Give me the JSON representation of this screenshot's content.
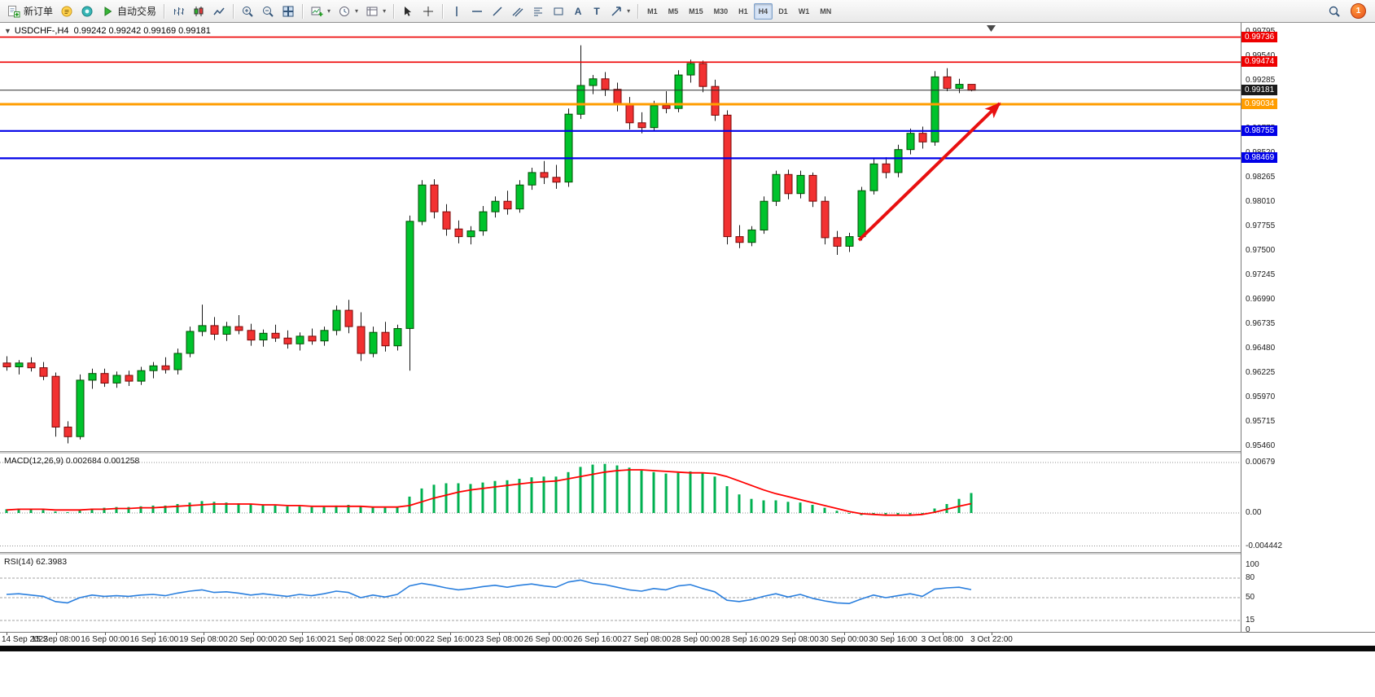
{
  "toolbar": {
    "new_order_label": "新订单",
    "autotrading_label": "自动交易",
    "timeframes": [
      "M1",
      "M5",
      "M15",
      "M30",
      "H1",
      "H4",
      "D1",
      "W1",
      "MN"
    ],
    "active_timeframe": "H4",
    "notification_count": "1"
  },
  "chart": {
    "symbol": "USDCHF-,H4",
    "ohlc_text": "0.99242 0.99242 0.99169 0.99181",
    "colors": {
      "up": "#00c32c",
      "up_border": "#044d04",
      "down": "#f23131",
      "down_border": "#7a0707"
    },
    "axis": {
      "price_max": 0.998,
      "price_min": 0.9546,
      "labels": [
        "0.99795",
        "0.99540",
        "0.99285",
        "0.99030",
        "0.98775",
        "0.98520",
        "0.98265",
        "0.98010",
        "0.97755",
        "0.97500",
        "0.97245",
        "0.96990",
        "0.96735",
        "0.96480",
        "0.96225",
        "0.95970",
        "0.95715",
        "0.95460"
      ]
    },
    "price_lines": [
      {
        "name": "resistance-upper",
        "price": 0.99736,
        "label": "0.99736",
        "color": "#ee0000",
        "width": 1.6
      },
      {
        "name": "resistance-lower",
        "price": 0.99474,
        "label": "0.99474",
        "color": "#ee0000",
        "width": 1.6
      },
      {
        "name": "bid-price",
        "price": 0.99181,
        "label": "0.99181",
        "color": "#2b2b2b",
        "width": 1,
        "badge": "#1a1a1a"
      },
      {
        "name": "alert-orange",
        "price": 0.99034,
        "label": "0.99034",
        "color": "#ff9d00",
        "width": 3
      },
      {
        "name": "support-upper",
        "price": 0.98755,
        "label": "0.98755",
        "color": "#0000e8",
        "width": 2.2
      },
      {
        "name": "support-lower",
        "price": 0.98469,
        "label": "0.98469",
        "color": "#0000e8",
        "width": 2.2
      }
    ],
    "arrow": {
      "from_index": 69.8,
      "from_price": 0.97613,
      "to_index": 81.33,
      "to_price": 0.99043,
      "color": "#e81010",
      "width": 4
    },
    "candles": [
      [
        0.9633,
        0.964,
        0.9625,
        0.9629
      ],
      [
        0.9629,
        0.9636,
        0.9621,
        0.9633
      ],
      [
        0.9633,
        0.9639,
        0.9624,
        0.9628
      ],
      [
        0.9628,
        0.9634,
        0.9615,
        0.9619
      ],
      [
        0.9619,
        0.9623,
        0.9556,
        0.9566
      ],
      [
        0.9566,
        0.9572,
        0.9549,
        0.9556
      ],
      [
        0.9556,
        0.9621,
        0.9553,
        0.9615
      ],
      [
        0.9615,
        0.9627,
        0.9606,
        0.9622
      ],
      [
        0.9622,
        0.9627,
        0.9608,
        0.9612
      ],
      [
        0.9612,
        0.9624,
        0.9607,
        0.962
      ],
      [
        0.962,
        0.9625,
        0.9609,
        0.9614
      ],
      [
        0.9614,
        0.9629,
        0.961,
        0.9625
      ],
      [
        0.9625,
        0.9634,
        0.9617,
        0.963
      ],
      [
        0.963,
        0.9639,
        0.9622,
        0.9626
      ],
      [
        0.9626,
        0.9648,
        0.9621,
        0.9643
      ],
      [
        0.9643,
        0.9671,
        0.9639,
        0.9666
      ],
      [
        0.9666,
        0.9694,
        0.9661,
        0.9672
      ],
      [
        0.9672,
        0.9681,
        0.9657,
        0.9663
      ],
      [
        0.9663,
        0.9676,
        0.9656,
        0.9671
      ],
      [
        0.9671,
        0.9683,
        0.9663,
        0.9667
      ],
      [
        0.9667,
        0.9674,
        0.9651,
        0.9657
      ],
      [
        0.9657,
        0.9668,
        0.965,
        0.9664
      ],
      [
        0.9664,
        0.9673,
        0.9655,
        0.9659
      ],
      [
        0.9659,
        0.9667,
        0.9648,
        0.9653
      ],
      [
        0.9653,
        0.9665,
        0.9646,
        0.9661
      ],
      [
        0.9661,
        0.9669,
        0.9652,
        0.9656
      ],
      [
        0.9656,
        0.9671,
        0.9651,
        0.9667
      ],
      [
        0.9667,
        0.9693,
        0.9662,
        0.9688
      ],
      [
        0.9688,
        0.9699,
        0.9664,
        0.9671
      ],
      [
        0.9671,
        0.9686,
        0.9635,
        0.9643
      ],
      [
        0.9643,
        0.9671,
        0.9639,
        0.9665
      ],
      [
        0.9665,
        0.9676,
        0.9645,
        0.9651
      ],
      [
        0.9651,
        0.9673,
        0.9646,
        0.9669
      ],
      [
        0.9669,
        0.9787,
        0.9625,
        0.9781
      ],
      [
        0.9781,
        0.9824,
        0.9777,
        0.9819
      ],
      [
        0.9819,
        0.9825,
        0.9784,
        0.9791
      ],
      [
        0.9791,
        0.9799,
        0.9766,
        0.9773
      ],
      [
        0.9773,
        0.9782,
        0.9758,
        0.9765
      ],
      [
        0.9765,
        0.9776,
        0.9757,
        0.9771
      ],
      [
        0.9771,
        0.9797,
        0.9766,
        0.9791
      ],
      [
        0.9791,
        0.9807,
        0.9785,
        0.9802
      ],
      [
        0.9802,
        0.9813,
        0.9788,
        0.9794
      ],
      [
        0.9794,
        0.9824,
        0.979,
        0.9819
      ],
      [
        0.9819,
        0.9837,
        0.9814,
        0.9832
      ],
      [
        0.9832,
        0.9844,
        0.982,
        0.9827
      ],
      [
        0.9827,
        0.984,
        0.9815,
        0.9822
      ],
      [
        0.9822,
        0.9899,
        0.9817,
        0.9893
      ],
      [
        0.9893,
        0.9965,
        0.9888,
        0.9923
      ],
      [
        0.9923,
        0.9934,
        0.9914,
        0.993
      ],
      [
        0.993,
        0.9937,
        0.9912,
        0.9919
      ],
      [
        0.9919,
        0.9926,
        0.9896,
        0.9903
      ],
      [
        0.9903,
        0.9911,
        0.9877,
        0.9884
      ],
      [
        0.9884,
        0.9895,
        0.9873,
        0.9879
      ],
      [
        0.9879,
        0.9907,
        0.9875,
        0.9902
      ],
      [
        0.9902,
        0.9917,
        0.9894,
        0.9899
      ],
      [
        0.9899,
        0.9939,
        0.9895,
        0.9934
      ],
      [
        0.9934,
        0.995,
        0.9926,
        0.9946
      ],
      [
        0.9946,
        0.9949,
        0.9916,
        0.9922
      ],
      [
        0.9922,
        0.9929,
        0.9886,
        0.9892
      ],
      [
        0.9892,
        0.9897,
        0.9757,
        0.9765
      ],
      [
        0.9765,
        0.9777,
        0.9753,
        0.9759
      ],
      [
        0.9759,
        0.9776,
        0.9755,
        0.9772
      ],
      [
        0.9772,
        0.9807,
        0.9768,
        0.9802
      ],
      [
        0.9802,
        0.9834,
        0.9797,
        0.983
      ],
      [
        0.983,
        0.9835,
        0.9804,
        0.981
      ],
      [
        0.981,
        0.9834,
        0.9805,
        0.9829
      ],
      [
        0.9829,
        0.9832,
        0.9796,
        0.9802
      ],
      [
        0.9802,
        0.9807,
        0.9757,
        0.9764
      ],
      [
        0.9764,
        0.9771,
        0.9746,
        0.9755
      ],
      [
        0.9755,
        0.9769,
        0.9749,
        0.9765
      ],
      [
        0.9765,
        0.9817,
        0.9761,
        0.9813
      ],
      [
        0.9813,
        0.9847,
        0.9809,
        0.9841
      ],
      [
        0.9841,
        0.9848,
        0.9826,
        0.9832
      ],
      [
        0.9832,
        0.9861,
        0.9827,
        0.9856
      ],
      [
        0.9856,
        0.9878,
        0.9851,
        0.9873
      ],
      [
        0.9873,
        0.988,
        0.9857,
        0.9864
      ],
      [
        0.9864,
        0.9938,
        0.986,
        0.9932
      ],
      [
        0.9932,
        0.9941,
        0.9917,
        0.992
      ],
      [
        0.992,
        0.993,
        0.9915,
        0.99242
      ],
      [
        0.99242,
        0.99242,
        0.99169,
        0.99181
      ]
    ]
  },
  "macd": {
    "title": "MACD(12,26,9)",
    "values_text": "0.002684 0.001258",
    "axis_labels": [
      "0.00679",
      "0.00",
      "-0.004442"
    ],
    "scale_max": 0.00679,
    "color": "#00b050",
    "signal_color": "#ff0000",
    "histogram": [
      0.0005,
      0.0006,
      0.0005,
      0.0004,
      0.0002,
      0.0001,
      0.0004,
      0.0006,
      0.0007,
      0.0008,
      0.0008,
      0.0009,
      0.001,
      0.001,
      0.0012,
      0.0014,
      0.0016,
      0.0015,
      0.0014,
      0.0013,
      0.0012,
      0.0011,
      0.001,
      0.0009,
      0.0009,
      0.0008,
      0.0008,
      0.001,
      0.0011,
      0.0009,
      0.0008,
      0.0007,
      0.0008,
      0.0022,
      0.0033,
      0.0038,
      0.004,
      0.004,
      0.0039,
      0.0041,
      0.0043,
      0.0044,
      0.0046,
      0.0048,
      0.0049,
      0.0049,
      0.0055,
      0.0062,
      0.0065,
      0.0066,
      0.0064,
      0.0061,
      0.0057,
      0.0055,
      0.0053,
      0.0054,
      0.0056,
      0.0054,
      0.0049,
      0.0036,
      0.0025,
      0.0019,
      0.0017,
      0.0017,
      0.0015,
      0.0014,
      0.0011,
      0.0007,
      0.0003,
      -0.0001,
      -0.0003,
      -0.0002,
      -0.0002,
      -0.0003,
      -0.0002,
      -0.0001,
      0.0006,
      0.0012,
      0.0019,
      0.002684
    ],
    "signal": [
      0.0004,
      0.0005,
      0.0005,
      0.0005,
      0.0004,
      0.0004,
      0.0004,
      0.0005,
      0.0005,
      0.0006,
      0.0006,
      0.0007,
      0.0007,
      0.0008,
      0.0009,
      0.001,
      0.0011,
      0.0012,
      0.0012,
      0.0012,
      0.0012,
      0.0011,
      0.0011,
      0.001,
      0.001,
      0.0009,
      0.0009,
      0.0009,
      0.0009,
      0.0009,
      0.0008,
      0.0008,
      0.0008,
      0.001,
      0.0015,
      0.002,
      0.0024,
      0.0028,
      0.0031,
      0.0033,
      0.0035,
      0.0037,
      0.0039,
      0.0041,
      0.0042,
      0.0043,
      0.0046,
      0.0049,
      0.0052,
      0.0055,
      0.0057,
      0.0058,
      0.0058,
      0.0057,
      0.0056,
      0.0055,
      0.0054,
      0.0054,
      0.0053,
      0.0049,
      0.0043,
      0.0037,
      0.0031,
      0.0026,
      0.0022,
      0.0018,
      0.0014,
      0.001,
      0.0006,
      0.0002,
      -0.0001,
      -0.0002,
      -0.0003,
      -0.0003,
      -0.0003,
      -0.0002,
      0.0001,
      0.0005,
      0.0009,
      0.001258
    ]
  },
  "rsi": {
    "title": "RSI(14)",
    "value_text": "62.3983",
    "axis_labels": [
      "100",
      "80",
      "50",
      "15",
      "0"
    ],
    "levels": [
      80,
      50,
      15
    ],
    "color": "#2a7fde",
    "values": [
      55,
      56,
      54,
      52,
      44,
      42,
      50,
      54,
      52,
      53,
      52,
      54,
      55,
      53,
      57,
      60,
      62,
      58,
      59,
      57,
      54,
      56,
      54,
      52,
      55,
      53,
      56,
      60,
      58,
      50,
      54,
      51,
      55,
      68,
      72,
      69,
      65,
      62,
      64,
      67,
      69,
      66,
      69,
      71,
      68,
      66,
      74,
      77,
      72,
      70,
      66,
      62,
      60,
      64,
      62,
      68,
      70,
      64,
      59,
      46,
      44,
      47,
      52,
      56,
      51,
      55,
      49,
      45,
      42,
      41,
      48,
      54,
      50,
      53,
      56,
      52,
      63,
      65,
      66,
      62.3983
    ]
  },
  "time_axis": {
    "labels": [
      "14 Sep 2022",
      "15 Sep 08:00",
      "16 Sep 00:00",
      "16 Sep 16:00",
      "19 Sep 08:00",
      "20 Sep 00:00",
      "20 Sep 16:00",
      "21 Sep 08:00",
      "22 Sep 00:00",
      "22 Sep 16:00",
      "23 Sep 08:00",
      "26 Sep 00:00",
      "26 Sep 16:00",
      "27 Sep 08:00",
      "28 Sep 00:00",
      "28 Sep 16:00",
      "29 Sep 08:00",
      "30 Sep 00:00",
      "30 Sep 16:00",
      "3 Oct 08:00",
      "3 Oct 22:00"
    ]
  }
}
